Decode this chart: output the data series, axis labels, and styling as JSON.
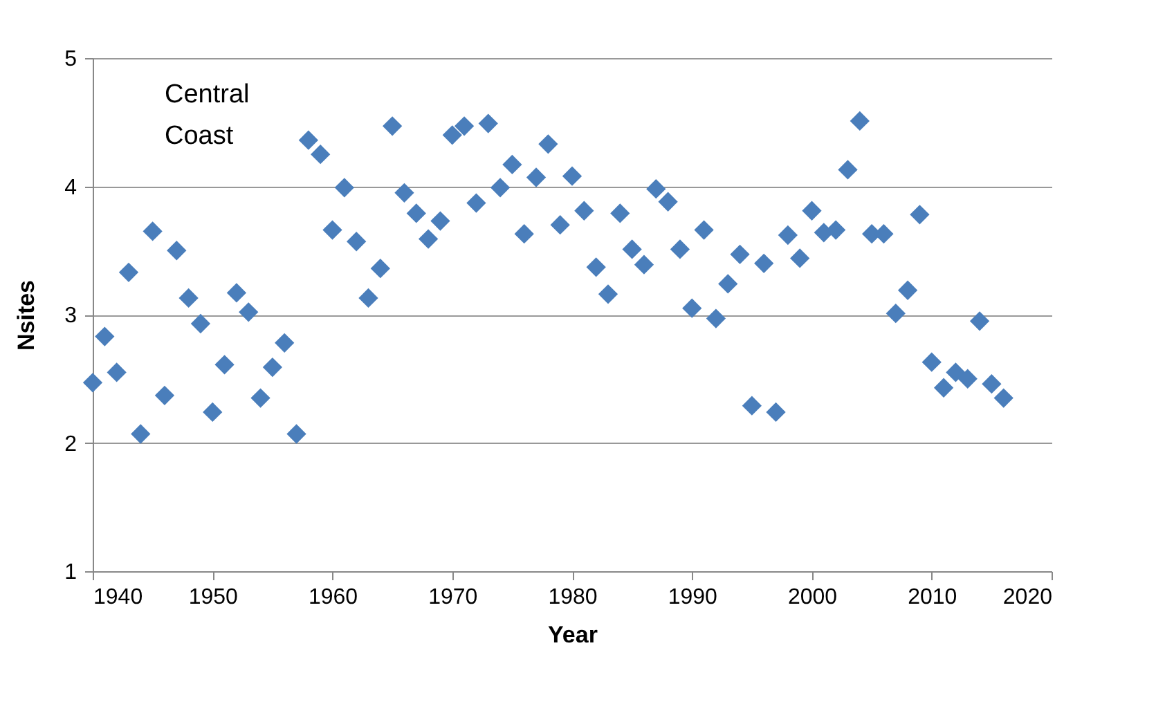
{
  "chart_data": {
    "type": "scatter",
    "xlabel": "Year",
    "ylabel": "Nsites",
    "annotations": [
      "Central\nCoast"
    ],
    "x": [
      1940,
      1941,
      1942,
      1943,
      1944,
      1945,
      1946,
      1947,
      1948,
      1949,
      1950,
      1951,
      1952,
      1953,
      1954,
      1955,
      1956,
      1957,
      1958,
      1959,
      1960,
      1961,
      1962,
      1963,
      1964,
      1965,
      1966,
      1967,
      1968,
      1969,
      1970,
      1971,
      1972,
      1973,
      1974,
      1975,
      1976,
      1977,
      1978,
      1979,
      1980,
      1981,
      1982,
      1983,
      1984,
      1985,
      1986,
      1987,
      1988,
      1989,
      1990,
      1991,
      1992,
      1993,
      1994,
      1995,
      1996,
      1997,
      1998,
      1999,
      2000,
      2001,
      2002,
      2003,
      2004,
      2005,
      2006,
      2007,
      2008,
      2009,
      2010,
      2011,
      2012,
      2013,
      2014,
      2015,
      2016
    ],
    "series": [
      {
        "color": "#4a7ebb",
        "values": [
          2.47,
          2.83,
          2.55,
          3.33,
          2.07,
          3.65,
          2.37,
          3.5,
          3.13,
          2.93,
          2.24,
          2.61,
          3.17,
          3.02,
          2.35,
          2.59,
          2.78,
          2.07,
          4.36,
          4.25,
          3.66,
          3.99,
          3.57,
          3.13,
          3.36,
          4.47,
          3.95,
          3.79,
          3.59,
          3.73,
          4.4,
          4.47,
          3.87,
          4.49,
          3.99,
          4.17,
          3.63,
          4.07,
          4.33,
          3.7,
          4.08,
          3.81,
          3.37,
          3.16,
          3.79,
          3.51,
          3.39,
          3.98,
          3.88,
          3.51,
          3.05,
          3.66,
          2.97,
          3.24,
          3.47,
          2.29,
          3.4,
          2.24,
          3.62,
          3.44,
          3.81,
          3.64,
          3.66,
          4.13,
          4.51,
          3.63,
          3.63,
          3.01,
          3.19,
          3.78,
          2.63,
          2.43,
          2.55,
          2.5,
          2.95,
          2.46,
          2.35
        ]
      }
    ],
    "xlim": [
      1940,
      2020
    ],
    "xticks": [
      1940,
      1950,
      1960,
      1970,
      1980,
      1990,
      2000,
      2010,
      2020
    ],
    "ylim": [
      1,
      5
    ],
    "yticks": [
      1,
      2,
      3,
      4,
      5
    ],
    "grid": "y",
    "marker": "diamond"
  }
}
